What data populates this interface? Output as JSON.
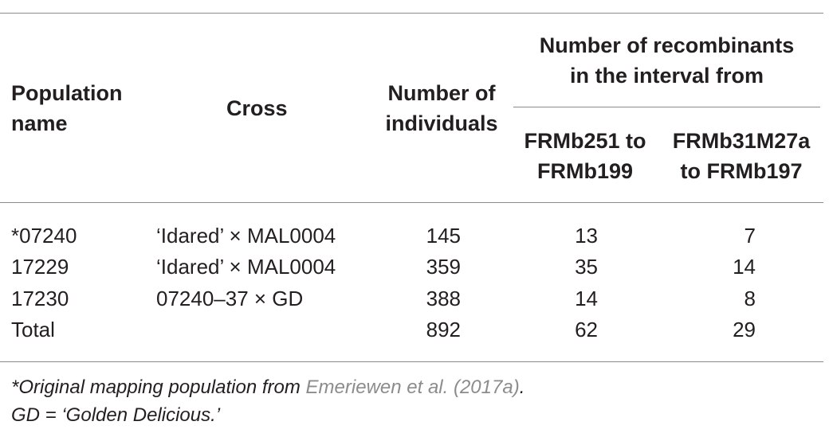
{
  "table": {
    "headers": {
      "population": "Population name",
      "population_line1": "Population",
      "population_line2": "name",
      "cross": "Cross",
      "individuals_line1": "Number of",
      "individuals_line2": "individuals",
      "recombinants_line1": "Number of recombinants",
      "recombinants_line2": "in the interval from",
      "interval1_line1": "FRMb251 to",
      "interval1_line2": "FRMb199",
      "interval2_line1": "FRMb31M27a",
      "interval2_line2": "to FRMb197"
    },
    "rows": [
      {
        "population": "*07240",
        "cross": "‘Idared’ × MAL0004",
        "individuals": "145",
        "interval1": "13",
        "interval2": "7"
      },
      {
        "population": "17229",
        "cross": "‘Idared’ × MAL0004",
        "individuals": "359",
        "interval1": "35",
        "interval2": "14"
      },
      {
        "population": "17230",
        "cross": "07240–37 × GD",
        "individuals": "388",
        "interval1": "14",
        "interval2": "8"
      },
      {
        "population": "Total",
        "cross": "",
        "individuals": "892",
        "interval1": "62",
        "interval2": "29"
      }
    ]
  },
  "footnotes": {
    "note1_prefix": "*Original mapping population from ",
    "note1_ref": "Emeriewen et al. (2017a)",
    "note1_suffix": ".",
    "note2": "GD = ‘Golden Delicious.’"
  }
}
